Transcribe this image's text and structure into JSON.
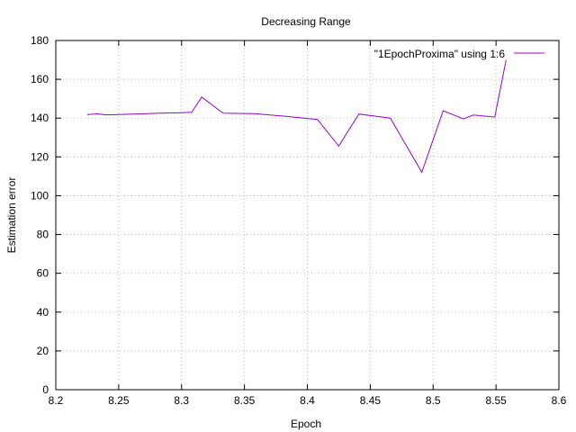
{
  "chart_data": {
    "type": "line",
    "title": "Decreasing Range",
    "xlabel": "Epoch",
    "ylabel": "Estimation error",
    "xlim": [
      8.2,
      8.6
    ],
    "ylim": [
      0,
      180
    ],
    "x_ticks": [
      "8.2",
      "8.25",
      "8.3",
      "8.35",
      "8.4",
      "8.45",
      "8.5",
      "8.55",
      "8.6"
    ],
    "y_ticks": [
      "0",
      "20",
      "40",
      "60",
      "80",
      "100",
      "120",
      "140",
      "160",
      "180"
    ],
    "grid": true,
    "legend_position": "top-right",
    "series": [
      {
        "name": "\"1EpochProxima\" using 1:6",
        "color": "#9400d3",
        "x": [
          8.225,
          8.233,
          8.24,
          8.25,
          8.267,
          8.283,
          8.3,
          8.308,
          8.316,
          8.333,
          8.358,
          8.383,
          8.408,
          8.425,
          8.441,
          8.466,
          8.491,
          8.508,
          8.524,
          8.532,
          8.549,
          8.558
        ],
        "y": [
          141.8,
          142.2,
          141.7,
          141.8,
          142.2,
          142.5,
          142.8,
          143.0,
          150.8,
          142.5,
          142.3,
          140.9,
          139.3,
          125.6,
          142.1,
          140.0,
          112.1,
          143.8,
          139.6,
          141.6,
          140.5,
          169.9
        ]
      }
    ]
  }
}
